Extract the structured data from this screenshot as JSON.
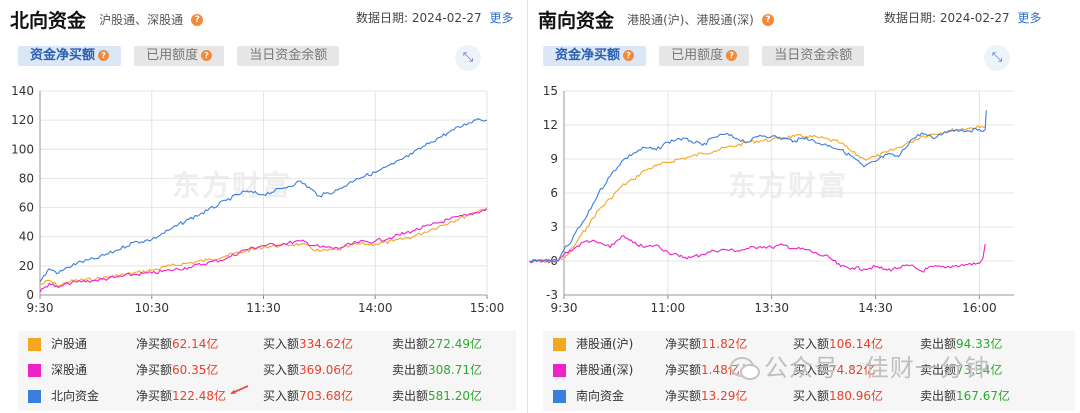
{
  "north": {
    "title": "北向资金",
    "subtitle": "沪股通、深股通",
    "date_label": "数据日期:",
    "date": "2024-02-27",
    "more": "更多",
    "tabs": [
      "资金净买额",
      "已用额度",
      "当日资金余额"
    ],
    "legend": [
      {
        "name": "沪股通",
        "color": "#f5a623",
        "net_label": "净买额",
        "net": "62.14亿",
        "buy_label": "买入额",
        "buy": "334.62亿",
        "sell_label": "卖出额",
        "sell": "272.49亿"
      },
      {
        "name": "深股通",
        "color": "#ee22c8",
        "net_label": "净买额",
        "net": "60.35亿",
        "buy_label": "买入额",
        "buy": "369.06亿",
        "sell_label": "卖出额",
        "sell": "308.71亿"
      },
      {
        "name": "北向资金",
        "color": "#3a7fdc",
        "net_label": "净买额",
        "net": "122.48亿",
        "buy_label": "买入额",
        "buy": "703.68亿",
        "sell_label": "卖出额",
        "sell": "581.20亿"
      }
    ]
  },
  "south": {
    "title": "南向资金",
    "subtitle": "港股通(沪)、港股通(深)",
    "date_label": "数据日期:",
    "date": "2024-02-27",
    "more": "更多",
    "tabs": [
      "资金净买额",
      "已用额度",
      "当日资金余额"
    ],
    "legend": [
      {
        "name": "港股通(沪)",
        "color": "#f5a623",
        "net_label": "净买额",
        "net": "11.82亿",
        "buy_label": "买入额",
        "buy": "106.14亿",
        "sell_label": "卖出额",
        "sell": "94.33亿"
      },
      {
        "name": "港股通(深)",
        "color": "#ee22c8",
        "net_label": "净买额",
        "net": "1.48亿",
        "buy_label": "买入额",
        "buy": "74.82亿",
        "sell_label": "卖出额",
        "sell": "73.34亿"
      },
      {
        "name": "南向资金",
        "color": "#3a7fdc",
        "net_label": "净买额",
        "net": "13.29亿",
        "buy_label": "买入额",
        "buy": "180.96亿",
        "sell_label": "卖出额",
        "sell": "167.67亿"
      }
    ]
  },
  "watermark": "东方财富",
  "wechat_watermark": "公众号 · 佳财一分钟",
  "chart_data": [
    {
      "type": "line",
      "ylim": [
        0,
        140
      ],
      "yticks": [
        0,
        20,
        40,
        60,
        80,
        100,
        120,
        140
      ],
      "xlim": [
        0,
        240
      ],
      "xticks": [
        {
          "x": 0,
          "label": "9:30"
        },
        {
          "x": 60,
          "label": "10:30"
        },
        {
          "x": 120,
          "label": "11:30"
        },
        {
          "x": 180,
          "label": "14:00"
        },
        {
          "x": 240,
          "label": "15:00"
        }
      ],
      "grid": true,
      "series": [
        {
          "name": "沪股通",
          "color": "#f5a623",
          "x": [
            0,
            5,
            10,
            15,
            20,
            30,
            40,
            50,
            60,
            70,
            80,
            90,
            100,
            110,
            120,
            130,
            140,
            150,
            160,
            170,
            180,
            190,
            200,
            210,
            220,
            230,
            240
          ],
          "y": [
            7,
            10,
            6,
            9,
            10,
            11,
            13,
            15,
            17,
            20,
            22,
            24,
            27,
            30,
            33,
            34,
            35,
            30,
            31,
            35,
            35,
            37,
            40,
            45,
            50,
            55,
            60
          ]
        },
        {
          "name": "深股通",
          "color": "#ee22c8",
          "x": [
            0,
            5,
            10,
            15,
            20,
            30,
            40,
            50,
            60,
            70,
            80,
            90,
            100,
            110,
            120,
            130,
            140,
            150,
            160,
            170,
            180,
            190,
            200,
            210,
            220,
            230,
            240
          ],
          "y": [
            2,
            8,
            5,
            8,
            9,
            10,
            12,
            14,
            15,
            17,
            19,
            22,
            25,
            31,
            34,
            35,
            37,
            33,
            32,
            36,
            37,
            40,
            44,
            48,
            52,
            55,
            59
          ]
        },
        {
          "name": "北向资金",
          "color": "#3a7fdc",
          "x": [
            0,
            5,
            10,
            15,
            20,
            30,
            40,
            50,
            60,
            70,
            80,
            90,
            100,
            110,
            120,
            130,
            140,
            150,
            160,
            170,
            180,
            190,
            200,
            210,
            220,
            230,
            235,
            240
          ],
          "y": [
            9,
            18,
            15,
            19,
            22,
            25,
            30,
            36,
            38,
            45,
            52,
            58,
            65,
            71,
            69,
            73,
            78,
            68,
            72,
            80,
            84,
            90,
            97,
            105,
            112,
            118,
            121,
            120
          ]
        }
      ]
    },
    {
      "type": "line",
      "ylim": [
        -3,
        15
      ],
      "yticks": [
        -3,
        0,
        3,
        6,
        9,
        12,
        15
      ],
      "xlim": [
        0,
        390
      ],
      "xticks": [
        {
          "x": 0,
          "label": "9:30"
        },
        {
          "x": 90,
          "label": "11:00"
        },
        {
          "x": 180,
          "label": "13:30"
        },
        {
          "x": 270,
          "label": "14:30"
        },
        {
          "x": 360,
          "label": "16:00"
        }
      ],
      "grid": true,
      "series": [
        {
          "name": "港股通(沪)",
          "color": "#f5a623",
          "x": [
            -30,
            -10,
            -5,
            0,
            5,
            10,
            15,
            20,
            30,
            40,
            50,
            60,
            70,
            80,
            90,
            100,
            110,
            120,
            130,
            140,
            150,
            160,
            170,
            180,
            190,
            200,
            210,
            220,
            230,
            240,
            250,
            260,
            270,
            280,
            290,
            300,
            310,
            320,
            330,
            340,
            350,
            360,
            365
          ],
          "y": [
            0,
            0,
            0,
            0.2,
            0.8,
            1.5,
            2.3,
            3,
            4.5,
            5.5,
            6.6,
            7.2,
            8,
            8.4,
            8.7,
            9,
            9.2,
            9.5,
            9.7,
            10,
            10.2,
            10.5,
            10.6,
            10.7,
            10.9,
            11,
            11,
            10.9,
            10.7,
            10.4,
            9.6,
            9,
            9.2,
            9.6,
            10,
            10.5,
            11,
            11.2,
            11.4,
            11.6,
            11.7,
            11.8,
            11.8
          ]
        },
        {
          "name": "港股通(深)",
          "color": "#ee22c8",
          "x": [
            -30,
            -10,
            -5,
            0,
            10,
            20,
            30,
            40,
            50,
            60,
            70,
            80,
            90,
            100,
            110,
            120,
            130,
            140,
            150,
            160,
            170,
            180,
            190,
            200,
            210,
            220,
            230,
            240,
            250,
            260,
            270,
            280,
            290,
            300,
            310,
            320,
            330,
            340,
            350,
            360,
            363,
            365
          ],
          "y": [
            0,
            0,
            0,
            0.6,
            1.2,
            1.8,
            1.6,
            1.2,
            2.2,
            1.6,
            1.2,
            1.4,
            0.8,
            0.4,
            0.3,
            0.6,
            0.9,
            1.0,
            0.9,
            1.1,
            1.3,
            1.2,
            1.4,
            1.1,
            1.0,
            0.6,
            0.3,
            -0.5,
            -0.6,
            -0.7,
            -0.5,
            -0.8,
            -0.6,
            -0.4,
            -0.9,
            -0.5,
            -0.6,
            -0.4,
            -0.3,
            -0.2,
            0.2,
            1.5
          ]
        },
        {
          "name": "南向资金",
          "color": "#3a7fdc",
          "x": [
            -30,
            -10,
            -5,
            0,
            5,
            10,
            15,
            20,
            30,
            40,
            50,
            60,
            70,
            80,
            90,
            100,
            110,
            120,
            130,
            140,
            150,
            160,
            170,
            180,
            190,
            200,
            210,
            220,
            230,
            240,
            250,
            260,
            270,
            280,
            290,
            300,
            310,
            320,
            330,
            340,
            350,
            360,
            365,
            366
          ],
          "y": [
            0,
            0,
            0,
            1,
            1.5,
            2.5,
            3.2,
            4,
            6,
            7.5,
            8.8,
            9.5,
            10,
            9.8,
            10.5,
            10.8,
            10.6,
            10.2,
            10.9,
            11.2,
            10.8,
            10.5,
            11.1,
            11.0,
            10.8,
            10.6,
            10.9,
            10.4,
            10.2,
            9.8,
            9.2,
            8.3,
            8.8,
            9.4,
            9.2,
            10.6,
            11.3,
            10.8,
            11.4,
            11.6,
            11.5,
            11.6,
            11.6,
            13.3
          ]
        }
      ]
    }
  ]
}
